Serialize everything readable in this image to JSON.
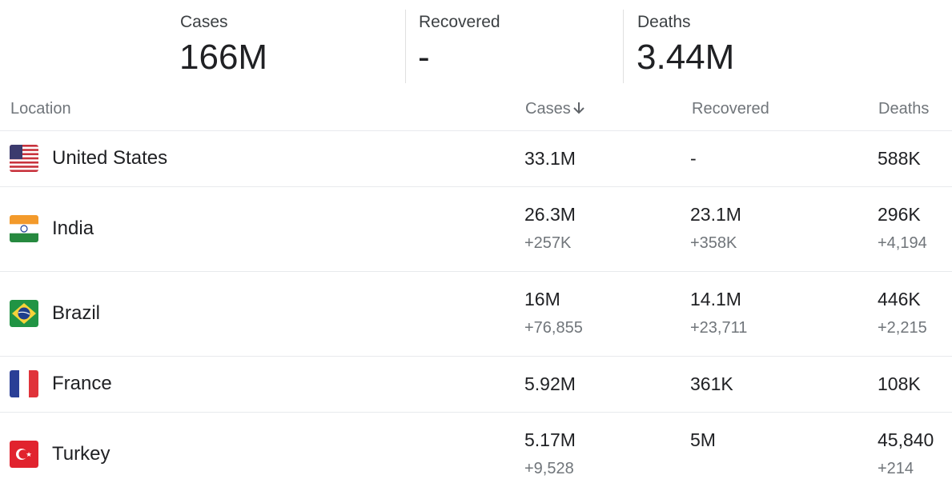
{
  "summary": [
    {
      "label": "Cases",
      "value": "166M"
    },
    {
      "label": "Recovered",
      "value": "-"
    },
    {
      "label": "Deaths",
      "value": "3.44M"
    }
  ],
  "table": {
    "headers": [
      "Location",
      "Cases",
      "Recovered",
      "Deaths"
    ],
    "rows": [
      {
        "location": "United States",
        "cases": "33.1M",
        "recovered": "-",
        "deaths": "588K"
      },
      {
        "location": "India",
        "cases": "26.3M",
        "cases_new": "+257K",
        "recovered": "23.1M",
        "recovered_new": "+358K",
        "deaths": "296K",
        "deaths_new": "+4,194"
      },
      {
        "location": "Brazil",
        "cases": "16M",
        "cases_new": "+76,855",
        "recovered": "14.1M",
        "recovered_new": "+23,711",
        "deaths": "446K",
        "deaths_new": "+2,215"
      },
      {
        "location": "France",
        "cases": "5.92M",
        "recovered": "361K",
        "deaths": "108K"
      },
      {
        "location": "Turkey",
        "cases": "5.17M",
        "cases_new": "+9,528",
        "recovered": "5M",
        "deaths": "45,840",
        "deaths_new": "+214"
      }
    ]
  }
}
